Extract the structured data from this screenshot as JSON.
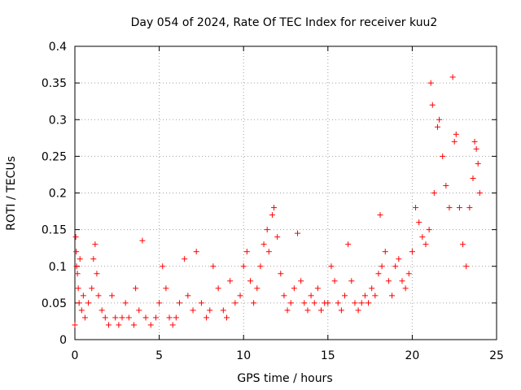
{
  "chart_data": {
    "type": "scatter",
    "title": "Day 054 of 2024, Rate Of TEC Index for receiver kuu2",
    "xlabel": "GPS time / hours",
    "ylabel": "ROTI / TECUs",
    "xlim": [
      0,
      25
    ],
    "ylim": [
      0,
      0.4
    ],
    "x_ticks": [
      0,
      5,
      10,
      15,
      20,
      25
    ],
    "x_tick_labels": [
      "0",
      "5",
      "10",
      "15",
      "20",
      "25"
    ],
    "y_ticks": [
      0,
      0.05,
      0.1,
      0.15,
      0.2,
      0.25,
      0.3,
      0.35,
      0.4
    ],
    "y_tick_labels": [
      "0",
      "0.05",
      "0.1",
      "0.15",
      "0.2",
      "0.25",
      "0.3",
      "0.35",
      "0.4"
    ],
    "grid": true,
    "marker": "+",
    "marker_color": "#ff0000",
    "series": [
      {
        "name": "ROTI",
        "points": [
          [
            0.0,
            0.02
          ],
          [
            0.05,
            0.14
          ],
          [
            0.08,
            0.12
          ],
          [
            0.1,
            0.1
          ],
          [
            0.15,
            0.09
          ],
          [
            0.2,
            0.07
          ],
          [
            0.25,
            0.05
          ],
          [
            0.3,
            0.11
          ],
          [
            0.4,
            0.04
          ],
          [
            0.5,
            0.06
          ],
          [
            0.6,
            0.03
          ],
          [
            0.8,
            0.05
          ],
          [
            1.0,
            0.07
          ],
          [
            1.1,
            0.11
          ],
          [
            1.2,
            0.13
          ],
          [
            1.3,
            0.09
          ],
          [
            1.4,
            0.06
          ],
          [
            1.6,
            0.04
          ],
          [
            1.8,
            0.03
          ],
          [
            2.0,
            0.02
          ],
          [
            2.2,
            0.06
          ],
          [
            2.4,
            0.03
          ],
          [
            2.6,
            0.02
          ],
          [
            2.8,
            0.03
          ],
          [
            3.0,
            0.05
          ],
          [
            3.2,
            0.03
          ],
          [
            3.5,
            0.02
          ],
          [
            3.6,
            0.07
          ],
          [
            3.8,
            0.04
          ],
          [
            4.0,
            0.135
          ],
          [
            4.2,
            0.03
          ],
          [
            4.5,
            0.02
          ],
          [
            4.8,
            0.03
          ],
          [
            5.0,
            0.05
          ],
          [
            5.2,
            0.1
          ],
          [
            5.4,
            0.07
          ],
          [
            5.6,
            0.03
          ],
          [
            5.8,
            0.02
          ],
          [
            6.0,
            0.03
          ],
          [
            6.2,
            0.05
          ],
          [
            6.5,
            0.11
          ],
          [
            6.7,
            0.06
          ],
          [
            7.0,
            0.04
          ],
          [
            7.2,
            0.12
          ],
          [
            7.5,
            0.05
          ],
          [
            7.8,
            0.03
          ],
          [
            8.0,
            0.04
          ],
          [
            8.2,
            0.1
          ],
          [
            8.5,
            0.07
          ],
          [
            8.8,
            0.04
          ],
          [
            9.0,
            0.03
          ],
          [
            9.2,
            0.08
          ],
          [
            9.5,
            0.05
          ],
          [
            9.8,
            0.06
          ],
          [
            10.0,
            0.1
          ],
          [
            10.2,
            0.12
          ],
          [
            10.4,
            0.08
          ],
          [
            10.6,
            0.05
          ],
          [
            10.8,
            0.07
          ],
          [
            11.0,
            0.1
          ],
          [
            11.2,
            0.13
          ],
          [
            11.4,
            0.15
          ],
          [
            11.5,
            0.12
          ],
          [
            11.7,
            0.17
          ],
          [
            11.8,
            0.18
          ],
          [
            12.0,
            0.14
          ],
          [
            12.2,
            0.09
          ],
          [
            12.4,
            0.06
          ],
          [
            12.6,
            0.04
          ],
          [
            12.8,
            0.05
          ],
          [
            13.0,
            0.07
          ],
          [
            13.2,
            0.145
          ],
          [
            13.4,
            0.08
          ],
          [
            13.6,
            0.05
          ],
          [
            13.8,
            0.04
          ],
          [
            14.0,
            0.06
          ],
          [
            14.2,
            0.05
          ],
          [
            14.4,
            0.07
          ],
          [
            14.6,
            0.04
          ],
          [
            14.8,
            0.05
          ],
          [
            15.0,
            0.05
          ],
          [
            15.2,
            0.1
          ],
          [
            15.4,
            0.08
          ],
          [
            15.6,
            0.05
          ],
          [
            15.8,
            0.04
          ],
          [
            16.0,
            0.06
          ],
          [
            16.2,
            0.13
          ],
          [
            16.4,
            0.08
          ],
          [
            16.6,
            0.05
          ],
          [
            16.8,
            0.04
          ],
          [
            17.0,
            0.05
          ],
          [
            17.2,
            0.06
          ],
          [
            17.4,
            0.05
          ],
          [
            17.6,
            0.07
          ],
          [
            17.8,
            0.06
          ],
          [
            18.0,
            0.09
          ],
          [
            18.1,
            0.17
          ],
          [
            18.2,
            0.1
          ],
          [
            18.4,
            0.12
          ],
          [
            18.6,
            0.08
          ],
          [
            18.8,
            0.06
          ],
          [
            19.0,
            0.1
          ],
          [
            19.2,
            0.11
          ],
          [
            19.4,
            0.08
          ],
          [
            19.6,
            0.07
          ],
          [
            19.8,
            0.09
          ],
          [
            20.0,
            0.12
          ],
          [
            20.2,
            0.18
          ],
          [
            20.4,
            0.16
          ],
          [
            20.6,
            0.14
          ],
          [
            20.8,
            0.13
          ],
          [
            21.0,
            0.15
          ],
          [
            21.1,
            0.35
          ],
          [
            21.2,
            0.32
          ],
          [
            21.3,
            0.2
          ],
          [
            21.5,
            0.29
          ],
          [
            21.6,
            0.3
          ],
          [
            21.8,
            0.25
          ],
          [
            22.0,
            0.21
          ],
          [
            22.2,
            0.18
          ],
          [
            22.4,
            0.358
          ],
          [
            22.5,
            0.27
          ],
          [
            22.6,
            0.28
          ],
          [
            22.8,
            0.18
          ],
          [
            23.0,
            0.13
          ],
          [
            23.2,
            0.1
          ],
          [
            23.4,
            0.18
          ],
          [
            23.6,
            0.22
          ],
          [
            23.7,
            0.27
          ],
          [
            23.8,
            0.26
          ],
          [
            23.9,
            0.24
          ],
          [
            24.0,
            0.2
          ]
        ]
      }
    ]
  }
}
